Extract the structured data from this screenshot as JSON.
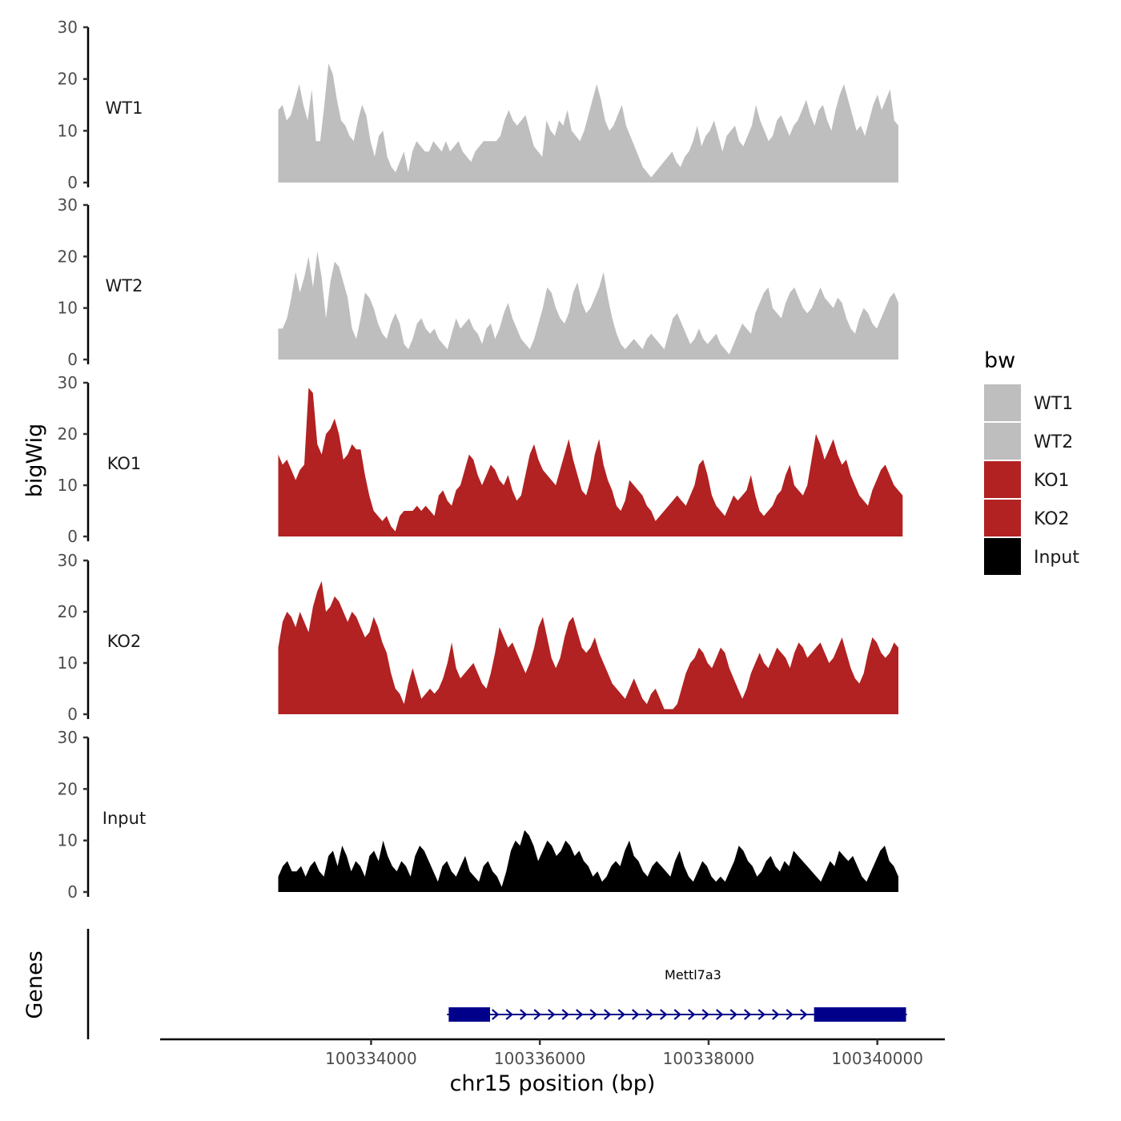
{
  "chart_data": {
    "type": "area",
    "xlabel": "chr15 position (bp)",
    "ylabel_tracks": "bigWig",
    "ylabel_genes": "Genes",
    "xlim": [
      100331500,
      100340800
    ],
    "ylim": [
      0,
      30
    ],
    "x_ticks": [
      100334000,
      100336000,
      100338000,
      100340000
    ],
    "x_tick_labels": [
      "100334000",
      "100336000",
      "100338000",
      "100340000"
    ],
    "y_ticks": [
      0,
      10,
      20,
      30
    ],
    "y_tick_labels": [
      "0",
      "10",
      "20",
      "30"
    ],
    "legend": {
      "title": "bw",
      "entries": [
        {
          "label": "WT1",
          "color": "#bebebe"
        },
        {
          "label": "WT2",
          "color": "#bebebe"
        },
        {
          "label": "KO1",
          "color": "#b22222"
        },
        {
          "label": "KO2",
          "color": "#b22222"
        },
        {
          "label": "Input",
          "color": "#000000"
        }
      ]
    },
    "series": [
      {
        "name": "WT1",
        "color": "#bebebe",
        "x_start": 100332900,
        "x_end": 100340250,
        "values": [
          14,
          15,
          12,
          13,
          16,
          19,
          15,
          12,
          18,
          8,
          8,
          15,
          23,
          21,
          16,
          12,
          11,
          9,
          8,
          12,
          15,
          13,
          8,
          5,
          9,
          10,
          5,
          3,
          2,
          4,
          6,
          2,
          6,
          8,
          7,
          6,
          6,
          8,
          7,
          6,
          8,
          6,
          7,
          8,
          6,
          5,
          4,
          6,
          7,
          8,
          8,
          8,
          8,
          9,
          12,
          14,
          12,
          11,
          12,
          13,
          10,
          7,
          6,
          5,
          12,
          10,
          9,
          12,
          11,
          14,
          10,
          9,
          8,
          10,
          13,
          16,
          19,
          16,
          12,
          10,
          11,
          13,
          15,
          11,
          9,
          7,
          5,
          3,
          2,
          1,
          2,
          3,
          4,
          5,
          6,
          4,
          3,
          5,
          6,
          8,
          11,
          7,
          9,
          10,
          12,
          9,
          6,
          9,
          10,
          11,
          8,
          7,
          9,
          11,
          15,
          12,
          10,
          8,
          9,
          12,
          13,
          11,
          9,
          11,
          12,
          14,
          16,
          13,
          11,
          14,
          15,
          12,
          10,
          14,
          17,
          19,
          16,
          13,
          10,
          11,
          9,
          12,
          15,
          17,
          14,
          16,
          18,
          12,
          11
        ]
      },
      {
        "name": "WT2",
        "color": "#bebebe",
        "x_start": 100332900,
        "x_end": 100340250,
        "values": [
          6,
          6,
          8,
          12,
          17,
          13,
          16,
          20,
          14,
          21,
          16,
          8,
          15,
          19,
          18,
          15,
          12,
          6,
          4,
          8,
          13,
          12,
          10,
          7,
          5,
          4,
          7,
          9,
          7,
          3,
          2,
          4,
          7,
          8,
          6,
          5,
          6,
          4,
          3,
          2,
          5,
          8,
          6,
          7,
          8,
          6,
          5,
          3,
          6,
          7,
          4,
          6,
          9,
          11,
          8,
          6,
          4,
          3,
          2,
          4,
          7,
          10,
          14,
          13,
          10,
          8,
          7,
          9,
          13,
          15,
          11,
          9,
          10,
          12,
          14,
          17,
          12,
          8,
          5,
          3,
          2,
          3,
          4,
          3,
          2,
          4,
          5,
          4,
          3,
          2,
          5,
          8,
          9,
          7,
          5,
          3,
          4,
          6,
          4,
          3,
          4,
          5,
          3,
          2,
          1,
          3,
          5,
          7,
          6,
          5,
          9,
          11,
          13,
          14,
          10,
          9,
          8,
          11,
          13,
          14,
          12,
          10,
          9,
          10,
          12,
          14,
          12,
          11,
          10,
          12,
          11,
          8,
          6,
          5,
          8,
          10,
          9,
          7,
          6,
          8,
          10,
          12,
          13,
          11
        ]
      },
      {
        "name": "KO1",
        "color": "#b22222",
        "x_start": 100332900,
        "x_end": 100340300,
        "values": [
          16,
          14,
          15,
          13,
          11,
          13,
          14,
          29,
          28,
          18,
          16,
          20,
          21,
          23,
          20,
          15,
          16,
          18,
          17,
          17,
          12,
          8,
          5,
          4,
          3,
          4,
          2,
          1,
          4,
          5,
          5,
          5,
          6,
          5,
          6,
          5,
          4,
          8,
          9,
          7,
          6,
          9,
          10,
          13,
          16,
          15,
          12,
          10,
          12,
          14,
          13,
          11,
          10,
          12,
          9,
          7,
          8,
          12,
          16,
          18,
          15,
          13,
          12,
          11,
          10,
          13,
          16,
          19,
          15,
          12,
          9,
          8,
          11,
          16,
          19,
          14,
          11,
          9,
          6,
          5,
          7,
          11,
          10,
          9,
          8,
          6,
          5,
          3,
          4,
          5,
          6,
          7,
          8,
          7,
          6,
          8,
          10,
          14,
          15,
          12,
          8,
          6,
          5,
          4,
          6,
          8,
          7,
          8,
          9,
          12,
          8,
          5,
          4,
          5,
          6,
          8,
          9,
          12,
          14,
          10,
          9,
          8,
          10,
          15,
          20,
          18,
          15,
          17,
          19,
          16,
          14,
          15,
          12,
          10,
          8,
          7,
          6,
          9,
          11,
          13,
          14,
          12,
          10,
          9,
          8
        ]
      },
      {
        "name": "KO2",
        "color": "#b22222",
        "x_start": 100332900,
        "x_end": 100340250,
        "values": [
          13,
          18,
          20,
          19,
          17,
          20,
          18,
          16,
          21,
          24,
          26,
          20,
          21,
          23,
          22,
          20,
          18,
          20,
          19,
          17,
          15,
          16,
          19,
          17,
          14,
          12,
          8,
          5,
          4,
          2,
          6,
          9,
          6,
          3,
          4,
          5,
          4,
          5,
          7,
          10,
          14,
          9,
          7,
          8,
          9,
          10,
          8,
          6,
          5,
          8,
          12,
          17,
          15,
          13,
          14,
          12,
          10,
          8,
          10,
          13,
          17,
          19,
          15,
          11,
          9,
          11,
          15,
          18,
          19,
          16,
          13,
          12,
          13,
          15,
          12,
          10,
          8,
          6,
          5,
          4,
          3,
          5,
          7,
          5,
          3,
          2,
          4,
          5,
          3,
          1,
          1,
          1,
          2,
          5,
          8,
          10,
          11,
          13,
          12,
          10,
          9,
          11,
          13,
          12,
          9,
          7,
          5,
          3,
          5,
          8,
          10,
          12,
          10,
          9,
          11,
          13,
          12,
          11,
          9,
          12,
          14,
          13,
          11,
          12,
          13,
          14,
          12,
          10,
          11,
          13,
          15,
          12,
          9,
          7,
          6,
          8,
          12,
          15,
          14,
          12,
          11,
          12,
          14,
          13
        ]
      },
      {
        "name": "Input",
        "color": "#000000",
        "x_start": 100332900,
        "x_end": 100340250,
        "values": [
          3,
          5,
          6,
          4,
          4,
          5,
          3,
          5,
          6,
          4,
          3,
          7,
          8,
          5,
          9,
          7,
          4,
          6,
          5,
          3,
          7,
          8,
          6,
          10,
          7,
          5,
          4,
          6,
          5,
          3,
          7,
          9,
          8,
          6,
          4,
          2,
          5,
          6,
          4,
          3,
          5,
          7,
          4,
          3,
          2,
          5,
          6,
          4,
          3,
          1,
          4,
          8,
          10,
          9,
          12,
          11,
          9,
          6,
          8,
          10,
          9,
          7,
          8,
          10,
          9,
          7,
          8,
          6,
          5,
          3,
          4,
          2,
          3,
          5,
          6,
          5,
          8,
          10,
          7,
          6,
          4,
          3,
          5,
          6,
          5,
          4,
          3,
          6,
          8,
          5,
          3,
          2,
          4,
          6,
          5,
          3,
          2,
          3,
          2,
          4,
          6,
          9,
          8,
          6,
          5,
          3,
          4,
          6,
          7,
          5,
          4,
          6,
          5,
          8,
          7,
          6,
          5,
          4,
          3,
          2,
          4,
          6,
          5,
          8,
          7,
          6,
          7,
          5,
          3,
          2,
          4,
          6,
          8,
          9,
          6,
          5,
          3
        ]
      }
    ],
    "gene_track": {
      "label": "Mettl7a3",
      "color": "#00008b",
      "strand": "+",
      "tx_start": 100334900,
      "tx_end": 100340350,
      "exons": [
        [
          100334920,
          100335410
        ],
        [
          100339250,
          100340340
        ]
      ]
    }
  }
}
